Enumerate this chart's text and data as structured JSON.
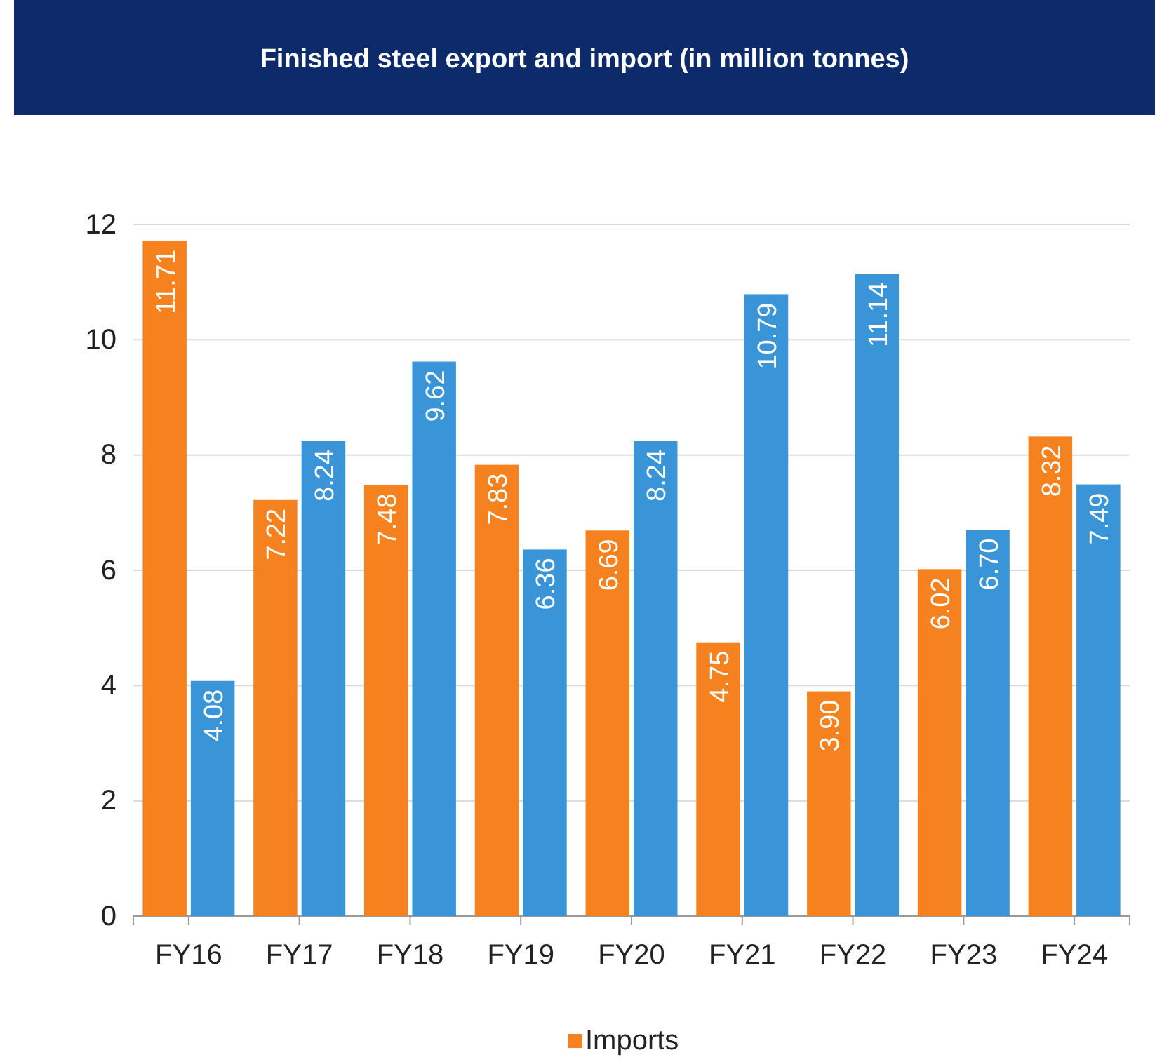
{
  "chart_data": {
    "type": "bar",
    "title": "Finished steel export and import (in million tonnes)",
    "categories": [
      "FY16",
      "FY17",
      "FY18",
      "FY19",
      "FY20",
      "FY21",
      "FY22",
      "FY23",
      "FY24"
    ],
    "series": [
      {
        "name": "Imports",
        "color": "#f5821f",
        "values": [
          11.71,
          7.22,
          7.48,
          7.83,
          6.69,
          4.75,
          3.9,
          6.02,
          8.32
        ],
        "value_labels": [
          "11.71",
          "7.22",
          "7.48",
          "7.83",
          "6.69",
          "4.75",
          "3.90",
          "6.02",
          "8.32"
        ]
      },
      {
        "color": "#3a94d8",
        "values": [
          4.08,
          8.24,
          9.62,
          6.36,
          8.24,
          10.79,
          11.14,
          6.7,
          7.49
        ],
        "value_labels": [
          "4.08",
          "8.24",
          "9.62",
          "6.36",
          "8.24",
          "10.79",
          "11.14",
          "6.70",
          "7.49"
        ]
      }
    ],
    "ylim": [
      0,
      12
    ],
    "yticks": [
      0,
      2,
      4,
      6,
      8,
      10,
      12
    ],
    "grid": "y",
    "legend": "bottom"
  }
}
